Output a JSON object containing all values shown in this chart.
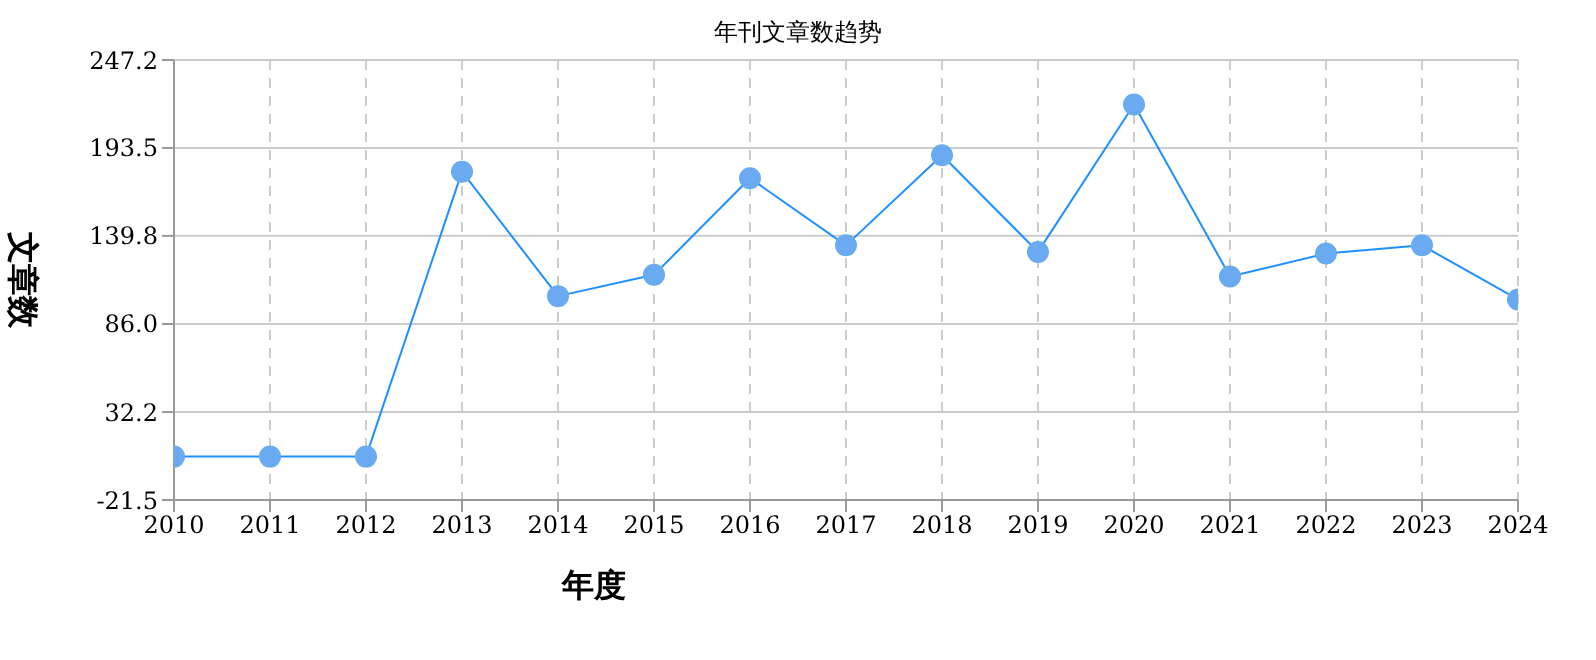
{
  "chart_data": {
    "type": "line",
    "title": "年刊文章数趋势",
    "xlabel": "年度",
    "ylabel": "文章数",
    "categories": [
      "2010",
      "2011",
      "2012",
      "2013",
      "2014",
      "2015",
      "2016",
      "2017",
      "2018",
      "2019",
      "2020",
      "2021",
      "2022",
      "2023",
      "2024"
    ],
    "series": [
      {
        "color": "#1e90ff",
        "values": [
          5,
          5,
          5,
          179,
          103,
          116,
          175,
          134,
          189,
          130,
          220,
          115,
          129,
          134,
          101
        ]
      }
    ],
    "ylim": [
      -21.5,
      247.2
    ],
    "yticks": [
      {
        "value": -21.5,
        "label": "-21.5"
      },
      {
        "value": 32.2,
        "label": "32.2"
      },
      {
        "value": 86,
        "label": "86.0"
      },
      {
        "value": 139.8,
        "label": "139.8"
      },
      {
        "value": 193.5,
        "label": "193.5"
      },
      {
        "value": 247.2,
        "label": "247.2"
      }
    ],
    "grid": true,
    "marker": "circle",
    "line_style": "solid"
  }
}
